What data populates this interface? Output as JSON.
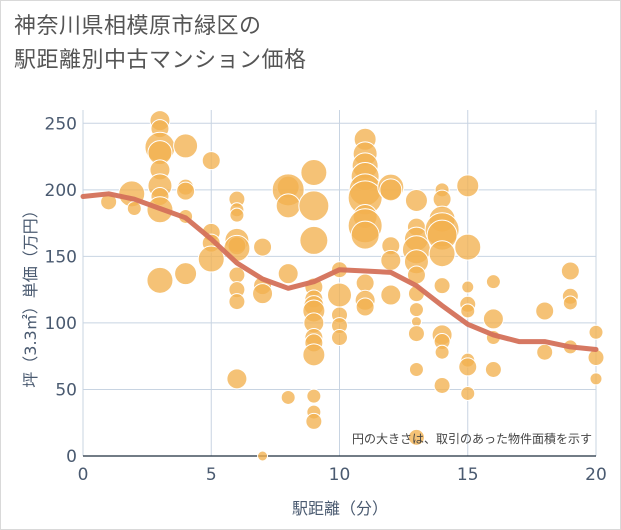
{
  "title": {
    "line1": "神奈川県相模原市緑区の",
    "line2": "駅距離別中古マンション価格"
  },
  "colors": {
    "bubble_fill": "#f2b14f",
    "bubble_stroke": "#ffffff",
    "trend": "#d4715a",
    "grid": "#c8d4e2",
    "axis_text": "#4a5a70"
  },
  "chart_data": {
    "type": "scatter",
    "title": "神奈川県相模原市緑区の 駅距離別中古マンション価格",
    "xlabel": "駅距離（分）",
    "ylabel": "坪（3.3㎡）単価（万円）",
    "xlim": [
      0,
      20
    ],
    "ylim": [
      0,
      260
    ],
    "xticks": [
      0,
      5,
      10,
      15,
      20
    ],
    "yticks": [
      0,
      50,
      100,
      150,
      200,
      250
    ],
    "grid": true,
    "note": "円の大きさは、取引のあった物件面積を示す",
    "points": [
      {
        "x": 1,
        "y": 191,
        "s": 8
      },
      {
        "x": 1.9,
        "y": 197,
        "s": 13
      },
      {
        "x": 2,
        "y": 186,
        "s": 7
      },
      {
        "x": 3,
        "y": 252,
        "s": 10
      },
      {
        "x": 3,
        "y": 246,
        "s": 9
      },
      {
        "x": 3,
        "y": 232,
        "s": 15
      },
      {
        "x": 3,
        "y": 228,
        "s": 12
      },
      {
        "x": 3,
        "y": 215,
        "s": 10
      },
      {
        "x": 3,
        "y": 203,
        "s": 12
      },
      {
        "x": 3,
        "y": 195,
        "s": 9
      },
      {
        "x": 3,
        "y": 185,
        "s": 13
      },
      {
        "x": 3,
        "y": 132,
        "s": 13
      },
      {
        "x": 4,
        "y": 233,
        "s": 12
      },
      {
        "x": 4,
        "y": 202,
        "s": 8
      },
      {
        "x": 4,
        "y": 199,
        "s": 9
      },
      {
        "x": 4,
        "y": 180,
        "s": 7
      },
      {
        "x": 4,
        "y": 137,
        "s": 11
      },
      {
        "x": 5,
        "y": 222,
        "s": 9
      },
      {
        "x": 5,
        "y": 168,
        "s": 9
      },
      {
        "x": 5,
        "y": 160,
        "s": 9
      },
      {
        "x": 5,
        "y": 148,
        "s": 13
      },
      {
        "x": 6,
        "y": 193,
        "s": 8
      },
      {
        "x": 6,
        "y": 185,
        "s": 7
      },
      {
        "x": 6,
        "y": 181,
        "s": 7
      },
      {
        "x": 6,
        "y": 162,
        "s": 12
      },
      {
        "x": 6,
        "y": 158,
        "s": 9
      },
      {
        "x": 6,
        "y": 156,
        "s": 13
      },
      {
        "x": 6,
        "y": 136,
        "s": 8
      },
      {
        "x": 6,
        "y": 125,
        "s": 8
      },
      {
        "x": 6,
        "y": 116,
        "s": 8
      },
      {
        "x": 6,
        "y": 58,
        "s": 10
      },
      {
        "x": 7,
        "y": 157,
        "s": 9
      },
      {
        "x": 7,
        "y": 128,
        "s": 9
      },
      {
        "x": 7,
        "y": 122,
        "s": 10
      },
      {
        "x": 7,
        "y": 0,
        "s": 5
      },
      {
        "x": 8,
        "y": 202,
        "s": 11
      },
      {
        "x": 8,
        "y": 200,
        "s": 16
      },
      {
        "x": 8,
        "y": 188,
        "s": 12
      },
      {
        "x": 8,
        "y": 137,
        "s": 10
      },
      {
        "x": 8,
        "y": 44,
        "s": 7
      },
      {
        "x": 9,
        "y": 213,
        "s": 13
      },
      {
        "x": 9,
        "y": 188,
        "s": 15
      },
      {
        "x": 9,
        "y": 162,
        "s": 14
      },
      {
        "x": 9,
        "y": 127,
        "s": 9
      },
      {
        "x": 9,
        "y": 118,
        "s": 9
      },
      {
        "x": 9,
        "y": 113,
        "s": 10
      },
      {
        "x": 9,
        "y": 109,
        "s": 11
      },
      {
        "x": 9,
        "y": 100,
        "s": 10
      },
      {
        "x": 9,
        "y": 89,
        "s": 9
      },
      {
        "x": 9,
        "y": 85,
        "s": 9
      },
      {
        "x": 9,
        "y": 76,
        "s": 11
      },
      {
        "x": 9,
        "y": 45,
        "s": 7
      },
      {
        "x": 9,
        "y": 33,
        "s": 7
      },
      {
        "x": 9,
        "y": 26,
        "s": 8
      },
      {
        "x": 10,
        "y": 140,
        "s": 8
      },
      {
        "x": 10,
        "y": 121,
        "s": 12
      },
      {
        "x": 10,
        "y": 106,
        "s": 8
      },
      {
        "x": 10,
        "y": 98,
        "s": 8
      },
      {
        "x": 10,
        "y": 89,
        "s": 8
      },
      {
        "x": 11,
        "y": 238,
        "s": 11
      },
      {
        "x": 11,
        "y": 227,
        "s": 12
      },
      {
        "x": 11,
        "y": 218,
        "s": 13
      },
      {
        "x": 11,
        "y": 210,
        "s": 14
      },
      {
        "x": 11,
        "y": 200,
        "s": 16
      },
      {
        "x": 11,
        "y": 194,
        "s": 17
      },
      {
        "x": 11,
        "y": 180,
        "s": 12
      },
      {
        "x": 11,
        "y": 173,
        "s": 17
      },
      {
        "x": 11,
        "y": 166,
        "s": 14
      },
      {
        "x": 11,
        "y": 130,
        "s": 9
      },
      {
        "x": 11,
        "y": 117,
        "s": 10
      },
      {
        "x": 11,
        "y": 112,
        "s": 9
      },
      {
        "x": 12,
        "y": 202,
        "s": 13
      },
      {
        "x": 12,
        "y": 200,
        "s": 11
      },
      {
        "x": 12,
        "y": 158,
        "s": 9
      },
      {
        "x": 12,
        "y": 147,
        "s": 10
      },
      {
        "x": 12,
        "y": 121,
        "s": 10
      },
      {
        "x": 13,
        "y": 192,
        "s": 11
      },
      {
        "x": 13,
        "y": 172,
        "s": 9
      },
      {
        "x": 13,
        "y": 163,
        "s": 12
      },
      {
        "x": 13,
        "y": 155,
        "s": 14
      },
      {
        "x": 13,
        "y": 146,
        "s": 12
      },
      {
        "x": 13,
        "y": 136,
        "s": 9
      },
      {
        "x": 13,
        "y": 122,
        "s": 8
      },
      {
        "x": 13,
        "y": 110,
        "s": 7
      },
      {
        "x": 13,
        "y": 101,
        "s": 5
      },
      {
        "x": 13,
        "y": 92,
        "s": 8
      },
      {
        "x": 13,
        "y": 65,
        "s": 7
      },
      {
        "x": 13,
        "y": 14,
        "s": 8
      },
      {
        "x": 14,
        "y": 200,
        "s": 7
      },
      {
        "x": 14,
        "y": 193,
        "s": 9
      },
      {
        "x": 14,
        "y": 178,
        "s": 13
      },
      {
        "x": 14,
        "y": 170,
        "s": 17
      },
      {
        "x": 14,
        "y": 166,
        "s": 15
      },
      {
        "x": 14,
        "y": 152,
        "s": 13
      },
      {
        "x": 14,
        "y": 128,
        "s": 8
      },
      {
        "x": 14,
        "y": 91,
        "s": 10
      },
      {
        "x": 14,
        "y": 86,
        "s": 8
      },
      {
        "x": 14,
        "y": 78,
        "s": 7
      },
      {
        "x": 14,
        "y": 53,
        "s": 8
      },
      {
        "x": 15,
        "y": 203,
        "s": 11
      },
      {
        "x": 15,
        "y": 157,
        "s": 13
      },
      {
        "x": 15,
        "y": 127,
        "s": 6
      },
      {
        "x": 15,
        "y": 114,
        "s": 8
      },
      {
        "x": 15,
        "y": 109,
        "s": 7
      },
      {
        "x": 15,
        "y": 72,
        "s": 7
      },
      {
        "x": 15,
        "y": 67,
        "s": 9
      },
      {
        "x": 15,
        "y": 47,
        "s": 7
      },
      {
        "x": 16,
        "y": 131,
        "s": 7
      },
      {
        "x": 16,
        "y": 103,
        "s": 10
      },
      {
        "x": 16,
        "y": 89,
        "s": 7
      },
      {
        "x": 16,
        "y": 65,
        "s": 8
      },
      {
        "x": 18,
        "y": 109,
        "s": 9
      },
      {
        "x": 18,
        "y": 78,
        "s": 8
      },
      {
        "x": 19,
        "y": 139,
        "s": 9
      },
      {
        "x": 19,
        "y": 120,
        "s": 8
      },
      {
        "x": 19,
        "y": 115,
        "s": 7
      },
      {
        "x": 19,
        "y": 82,
        "s": 7
      },
      {
        "x": 20,
        "y": 93,
        "s": 7
      },
      {
        "x": 20,
        "y": 74,
        "s": 8
      },
      {
        "x": 20,
        "y": 58,
        "s": 6
      }
    ],
    "trend": {
      "x": [
        0,
        1,
        2,
        3,
        4,
        5,
        6,
        7,
        8,
        9,
        10,
        11,
        12,
        13,
        14,
        15,
        16,
        17,
        18,
        19,
        20
      ],
      "y": [
        195,
        197,
        193,
        186,
        179,
        163,
        145,
        133,
        126,
        131,
        140,
        139,
        138,
        128,
        113,
        99,
        91,
        86,
        86,
        82,
        80
      ]
    }
  }
}
